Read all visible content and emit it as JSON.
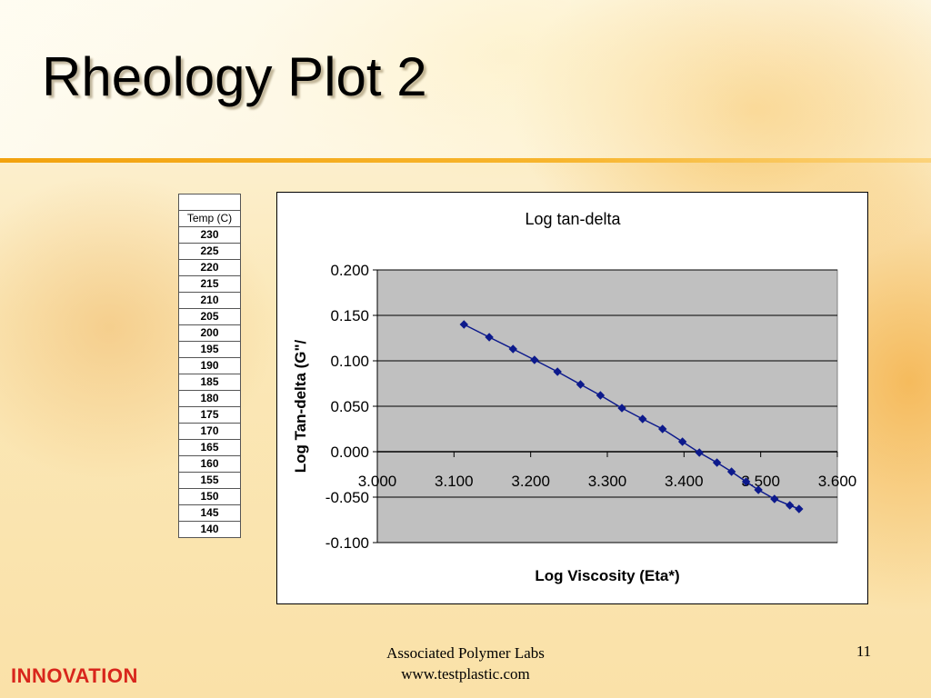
{
  "slide": {
    "title": "Rheology Plot 2",
    "footer_line1": "Associated Polymer Labs",
    "footer_line2": "www.testplastic.com",
    "page_number": "11",
    "logo": "INNOVATION"
  },
  "colors": {
    "accent_orange": "#f2a20e",
    "series_color": "#0d1a8c",
    "plot_area": "#c0c0c0",
    "logo_red": "#d8261c"
  },
  "temp_table": {
    "header": "Temp (C)",
    "values": [
      "230",
      "225",
      "220",
      "215",
      "210",
      "205",
      "200",
      "195",
      "190",
      "185",
      "180",
      "175",
      "170",
      "165",
      "160",
      "155",
      "150",
      "145",
      "140"
    ]
  },
  "chart_data": {
    "type": "line",
    "title": "Log tan-delta",
    "xlabel": "Log Viscosity (Eta*)",
    "ylabel": "Log Tan-delta (G\"/",
    "xlim": [
      3.0,
      3.6
    ],
    "ylim": [
      -0.1,
      0.2
    ],
    "x_ticks": [
      "3.000",
      "3.100",
      "3.200",
      "3.300",
      "3.400",
      "3.500",
      "3.600"
    ],
    "y_ticks": [
      "0.200",
      "0.150",
      "0.100",
      "0.050",
      "0.000",
      "-0.050",
      "-0.100"
    ],
    "grid": true,
    "legend": "none",
    "marker": "diamond",
    "series": [
      {
        "x": [
          3.113,
          3.146,
          3.177,
          3.205,
          3.235,
          3.265,
          3.291,
          3.319,
          3.346,
          3.372,
          3.398,
          3.42,
          3.443,
          3.462,
          3.481,
          3.497,
          3.518,
          3.538,
          3.55
        ],
        "values": [
          0.14,
          0.126,
          0.113,
          0.101,
          0.088,
          0.074,
          0.062,
          0.048,
          0.036,
          0.025,
          0.011,
          -0.001,
          -0.012,
          -0.022,
          -0.033,
          -0.042,
          -0.052,
          -0.059,
          -0.063
        ]
      }
    ]
  }
}
